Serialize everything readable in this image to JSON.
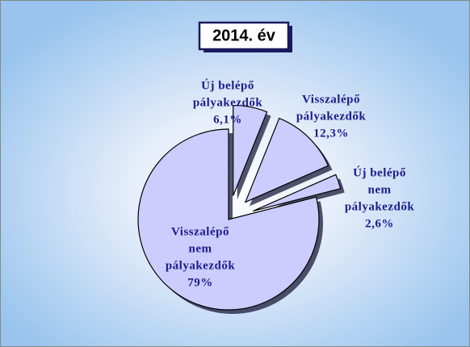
{
  "chart_data": {
    "type": "pie",
    "title": "2014. év",
    "categories": [
      [
        "Új belépő",
        "pályakezdők"
      ],
      [
        "Visszalépő",
        "pályakezdők"
      ],
      [
        "Új belépő",
        "nem",
        "pályakezdők"
      ],
      [
        "Visszalépő",
        "nem",
        "pályakezdők"
      ]
    ],
    "values": [
      6.1,
      12.3,
      2.6,
      79
    ],
    "value_labels": [
      "6,1%",
      "12,3%",
      "2,6%",
      "79%"
    ],
    "color": "#ccccff"
  }
}
